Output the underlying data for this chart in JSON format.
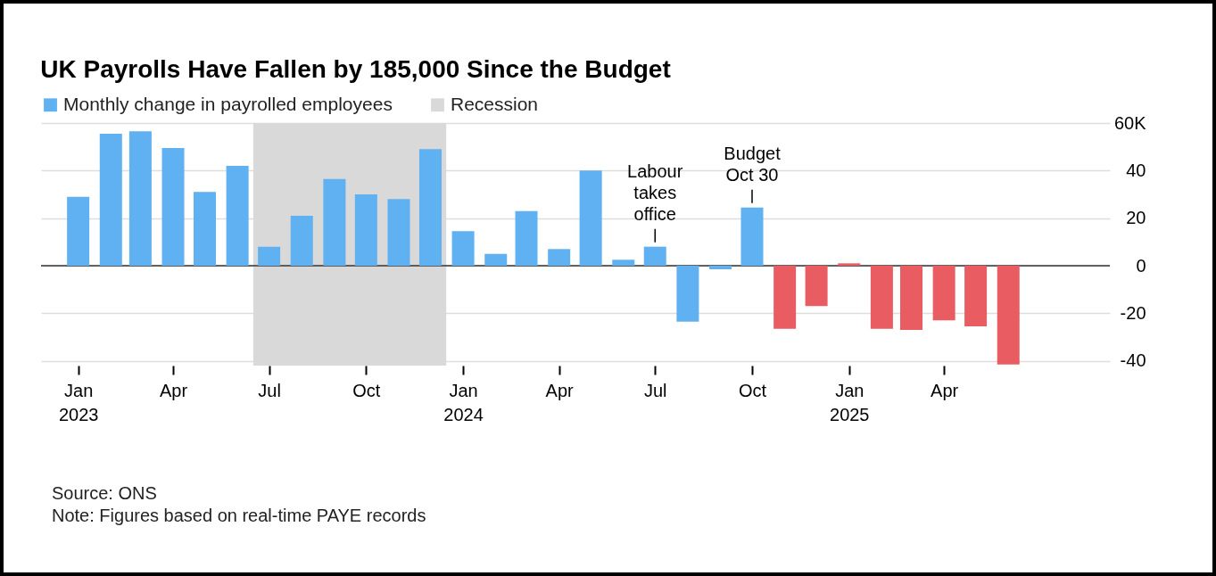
{
  "chart_data": {
    "type": "bar",
    "title": "UK Payrolls Have Fallen by 185,000 Since the Budget",
    "x": [
      "2023-01",
      "2023-02",
      "2023-03",
      "2023-04",
      "2023-05",
      "2023-06",
      "2023-07",
      "2023-08",
      "2023-09",
      "2023-10",
      "2023-11",
      "2023-12",
      "2024-01",
      "2024-02",
      "2024-03",
      "2024-04",
      "2024-05",
      "2024-06",
      "2024-07",
      "2024-08",
      "2024-09",
      "2024-10",
      "2024-11",
      "2024-12",
      "2025-01",
      "2025-02",
      "2025-03",
      "2025-04",
      "2025-05",
      "2025-06"
    ],
    "series": [
      {
        "name": "Monthly change in payrolled employees",
        "color": "#5fb1f1",
        "values": [
          29,
          55.5,
          56.5,
          49.5,
          31,
          42,
          8,
          21,
          36.5,
          30,
          28,
          49,
          14.5,
          5,
          23,
          7,
          40,
          2.5,
          8,
          -23.5,
          -1.5,
          24.5,
          null,
          null,
          null,
          null,
          null,
          null,
          null,
          null
        ]
      },
      {
        "color": "#e95c61",
        "values": [
          null,
          null,
          null,
          null,
          null,
          null,
          null,
          null,
          null,
          null,
          null,
          null,
          null,
          null,
          null,
          null,
          null,
          null,
          null,
          null,
          null,
          null,
          -26.5,
          -17,
          1,
          -26.5,
          -27,
          -23,
          -25.5,
          -41.5
        ]
      }
    ],
    "bands": [
      {
        "axis": "x",
        "from": "2023-06-16",
        "to": "2023-12-16",
        "label": "Recession",
        "color": "#d9d9d9"
      }
    ],
    "xlim": [
      "2022-12-01",
      "2025-09-01"
    ],
    "xticks": [
      {
        "value": "2023-01",
        "label": "Jan 2023"
      },
      {
        "value": "2023-04",
        "label": "Apr"
      },
      {
        "value": "2023-07",
        "label": "Jul"
      },
      {
        "value": "2023-10",
        "label": "Oct"
      },
      {
        "value": "2024-01",
        "label": "Jan 2024"
      },
      {
        "value": "2024-04",
        "label": "Apr"
      },
      {
        "value": "2024-07",
        "label": "Jul"
      },
      {
        "value": "2024-10",
        "label": "Oct"
      },
      {
        "value": "2025-01",
        "label": "Jan 2025"
      },
      {
        "value": "2025-04",
        "label": "Apr"
      }
    ],
    "ylim": [
      -42,
      60
    ],
    "yticks": [
      {
        "value": 60,
        "label": "60K"
      },
      40,
      20,
      0,
      -20,
      -40
    ],
    "grid": "y",
    "legend": "top left",
    "annotations": [
      {
        "text": "Labour takes office",
        "x": "2024-07",
        "y": 8
      },
      {
        "text": "Budget Oct 30",
        "x": "2024-10",
        "y": 24.5
      },
      "Source: ONS",
      "Note: Figures based on real-time PAYE records"
    ]
  }
}
